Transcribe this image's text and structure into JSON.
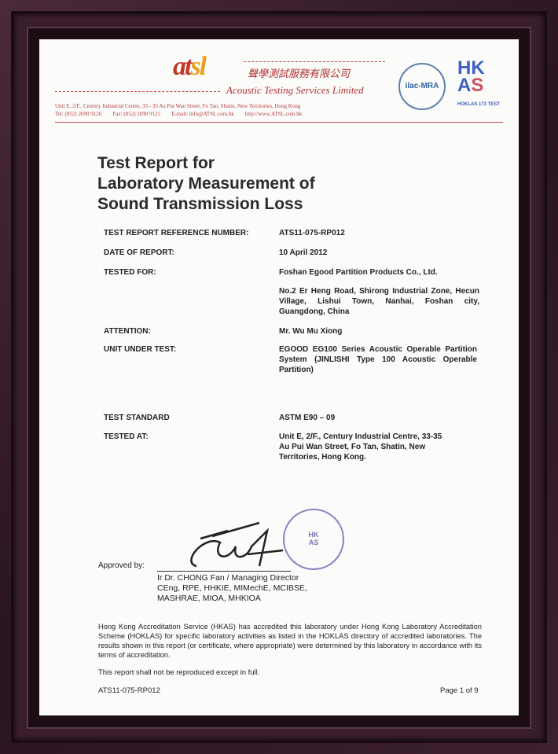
{
  "header": {
    "logo_text": "atsl",
    "chinese_name": "聲學測試服務有限公司",
    "company_name": "Acoustic Testing Services Limited",
    "address": "Unit E, 2/F., Century Industrial Centre, 33 - 35 Au Pui Wan Street, Fo Tan, Shatin, New Territories, Hong Kong",
    "tel": "Tel: (852) 2690 9126",
    "fax": "Fax: (852) 2690 9125",
    "email": "E-mail: info@ATSL.com.hk",
    "web": "http://www.ATSL.com.hk",
    "ilac": "ilac-MRA",
    "hkas": "HKAS",
    "hoklas": "HOKLAS 173 TEST"
  },
  "title": [
    "Test Report for",
    "Laboratory Measurement of",
    "Sound Transmission Loss"
  ],
  "fields": [
    {
      "label": "TEST REPORT REFERENCE NUMBER:",
      "value": "ATS11-075-RP012"
    },
    {
      "label": "DATE OF REPORT:",
      "value": "10 April 2012"
    },
    {
      "label": "TESTED FOR:",
      "value": "Foshan Egood Partition Products Co., Ltd.",
      "value2": "No.2 Er Heng Road, Shirong Industrial Zone, Hecun Village, Lishui Town, Nanhai, Foshan city, Guangdong, China"
    },
    {
      "label": "ATTENTION:",
      "value": "Mr. Wu Mu Xiong"
    },
    {
      "label": "UNIT UNDER TEST:",
      "value": "EGOOD EG100 Series Acoustic Operable Partition System (JINLISHI Type 100 Acoustic Operable Partition)"
    },
    {
      "label": "TEST STANDARD",
      "value": "ASTM E90 – 09"
    },
    {
      "label": "TESTED AT:",
      "value": "Unit E, 2/F., Century Industrial Centre, 33-35 Au Pui Wan Street, Fo Tan, Shatin, New Territories, Hong Kong."
    }
  ],
  "approval": {
    "label": "Approved by:",
    "name": "Ir Dr. CHONG Fan / Managing Director",
    "quals1": "CEng, RPE, HHKIE, MIMechE, MCIBSE,",
    "quals2": "MASHRAE, MIOA, MHKIOA",
    "stamp_text": "Acoustic Testing Services Limited"
  },
  "accreditation": "Hong Kong Accreditation Service (HKAS) has accredited this laboratory under Hong Kong Laboratory Accreditation Scheme (HOKLAS) for specific laboratory activities as listed in the HOKLAS directory of accredited laboratories. The results shown in this report (or certificate, where appropriate) were determined by this laboratory in accordance with its terms of accreditation.",
  "reproduction_note": "This report shall not be reproduced except in full.",
  "footer": {
    "ref": "ATS11-075-RP012",
    "page": "Page 1 of 9"
  }
}
